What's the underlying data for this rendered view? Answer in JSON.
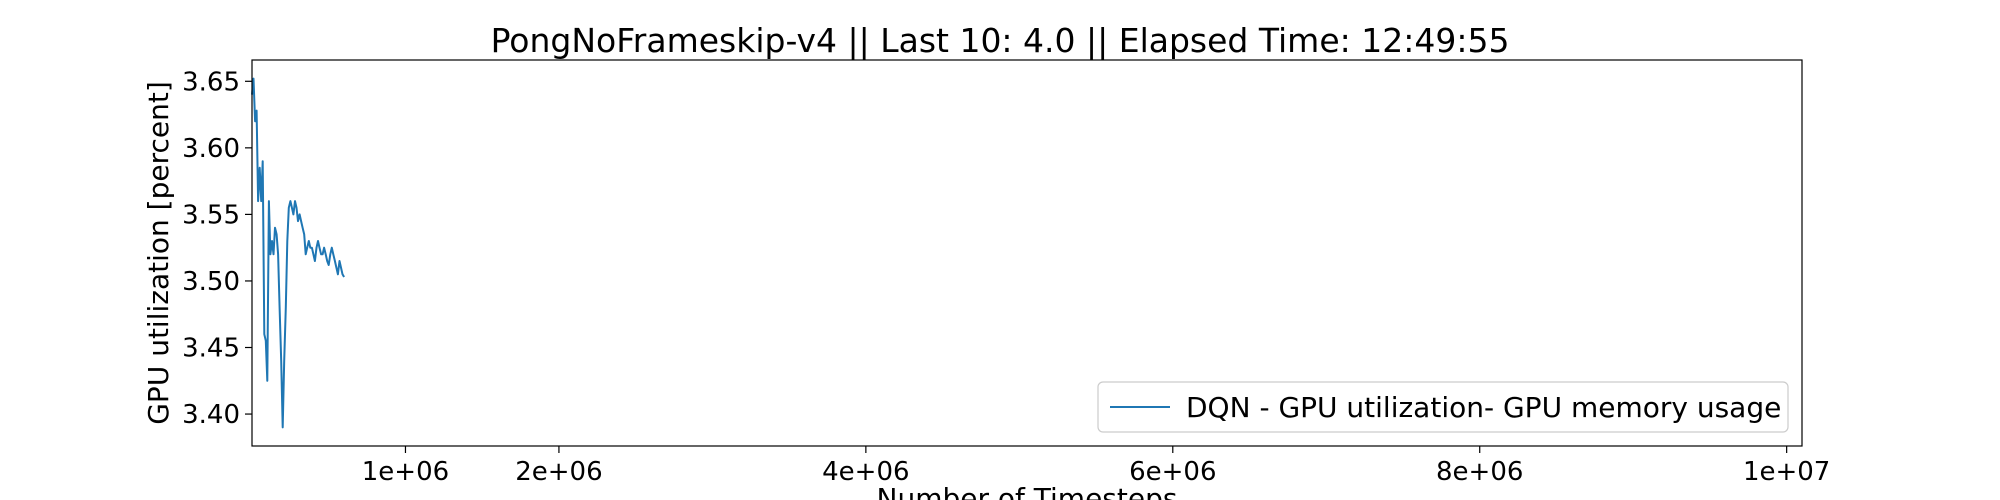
{
  "chart_data": {
    "type": "line",
    "title": "PongNoFrameskip-v4 || Last 10: 4.0 || Elapsed Time: 12:49:55",
    "xlabel": "Number of Timesteps",
    "ylabel": "GPU utilization [percent]",
    "xlim": [
      0,
      10100000
    ],
    "ylim": [
      3.376,
      3.666
    ],
    "x_ticks": [
      1000000,
      2000000,
      4000000,
      6000000,
      8000000,
      10000000
    ],
    "x_tick_labels": [
      "1e+06",
      "2e+06",
      "4e+06",
      "6e+06",
      "8e+06",
      "1e+07"
    ],
    "y_ticks": [
      3.4,
      3.45,
      3.5,
      3.55,
      3.6,
      3.65
    ],
    "y_tick_labels": [
      "3.40",
      "3.45",
      "3.50",
      "3.55",
      "3.60",
      "3.65"
    ],
    "grid": false,
    "legend_position": "lower-right",
    "series": [
      {
        "name": "DQN - GPU utilization- GPU memory usage",
        "color": "#1f77b4",
        "x": [
          0,
          10000,
          20000,
          30000,
          40000,
          50000,
          60000,
          70000,
          80000,
          90000,
          100000,
          110000,
          120000,
          130000,
          140000,
          150000,
          160000,
          170000,
          180000,
          190000,
          200000,
          210000,
          220000,
          230000,
          240000,
          250000,
          260000,
          270000,
          280000,
          290000,
          300000,
          310000,
          320000,
          330000,
          340000,
          350000,
          360000,
          370000,
          380000,
          390000,
          400000,
          410000,
          420000,
          430000,
          440000,
          450000,
          460000,
          470000,
          480000,
          490000,
          500000,
          510000,
          520000,
          530000,
          540000,
          550000,
          560000,
          570000,
          580000,
          590000,
          600000
        ],
        "values": [
          3.64,
          3.652,
          3.62,
          3.628,
          3.56,
          3.585,
          3.56,
          3.59,
          3.46,
          3.455,
          3.425,
          3.56,
          3.52,
          3.53,
          3.52,
          3.54,
          3.535,
          3.52,
          3.48,
          3.44,
          3.39,
          3.44,
          3.48,
          3.53,
          3.555,
          3.56,
          3.555,
          3.55,
          3.56,
          3.555,
          3.545,
          3.55,
          3.545,
          3.54,
          3.535,
          3.52,
          3.525,
          3.53,
          3.525,
          3.525,
          3.52,
          3.515,
          3.525,
          3.53,
          3.525,
          3.52,
          3.52,
          3.525,
          3.52,
          3.515,
          3.512,
          3.52,
          3.525,
          3.52,
          3.515,
          3.51,
          3.505,
          3.515,
          3.51,
          3.505,
          3.503
        ]
      }
    ]
  }
}
